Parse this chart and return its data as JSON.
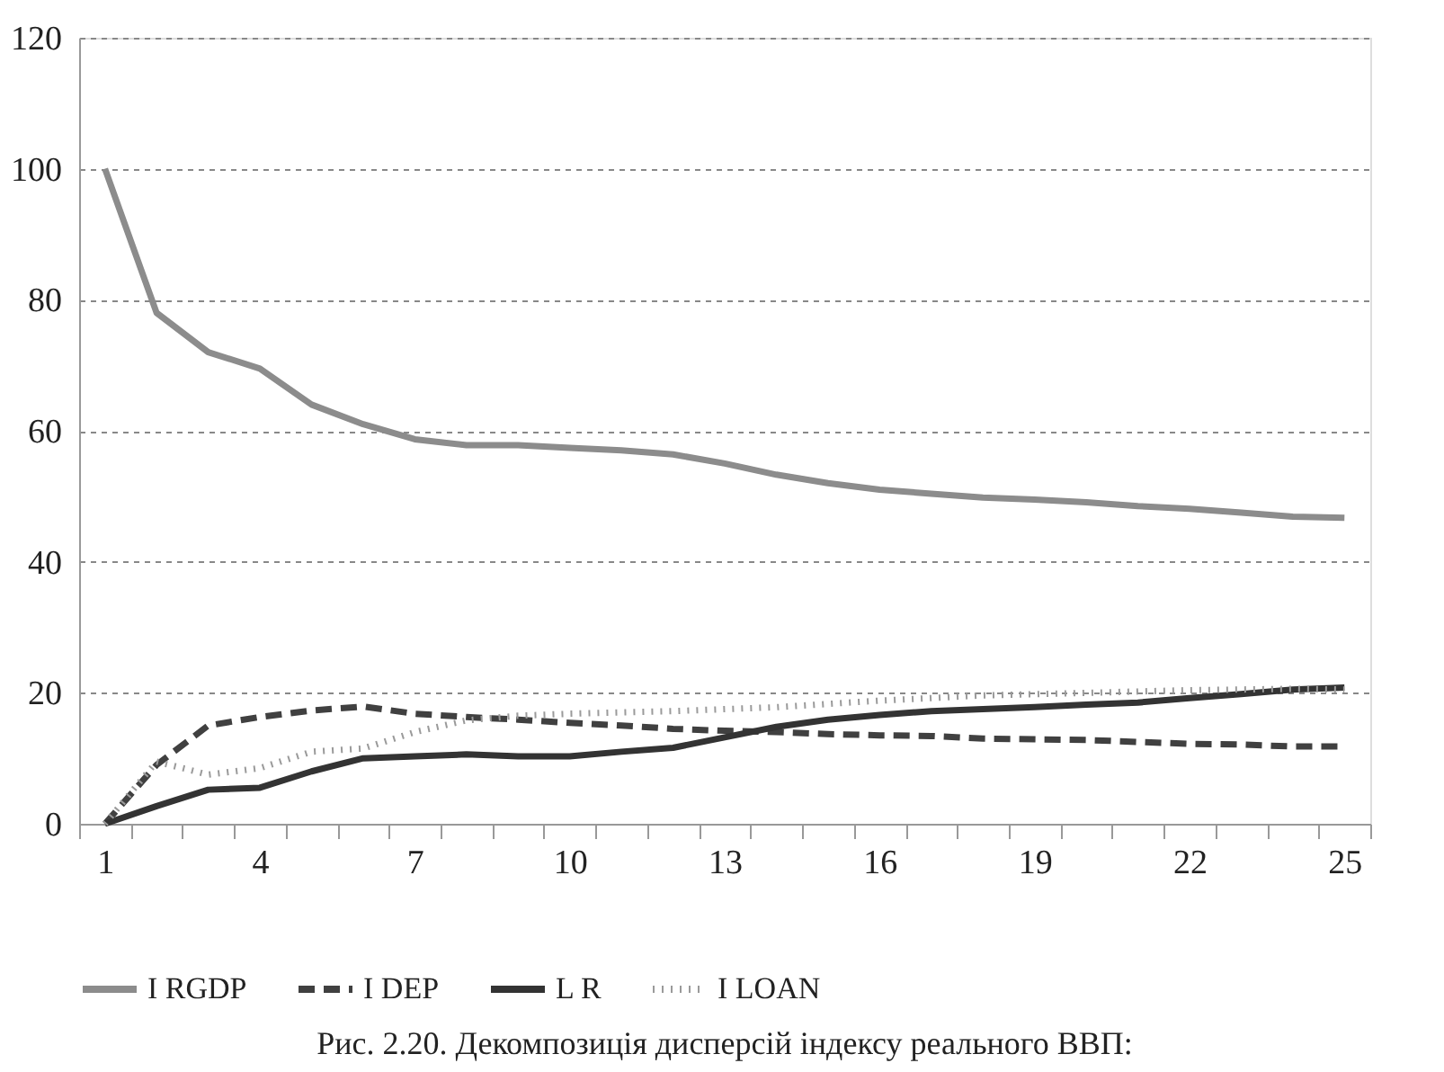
{
  "chart_data": {
    "type": "line",
    "title": "Рис. 2.20. Декомпозиція дисперсій індексу реального ВВП:",
    "categories": [
      "1",
      null,
      null,
      "4",
      null,
      null,
      "7",
      null,
      null,
      "10",
      null,
      null,
      "13",
      null,
      null,
      "16",
      null,
      null,
      "19",
      null,
      null,
      "22",
      null,
      null,
      "25"
    ],
    "ylim": [
      0,
      120
    ],
    "yticks": [
      0,
      20,
      40,
      60,
      80,
      100,
      120
    ],
    "grid": "y",
    "legend": "bottom",
    "marker": "none",
    "series": [
      {
        "name": "I RGDP",
        "color": "#8c8c8c",
        "line_style": "solid",
        "values": [
          100,
          78,
          72,
          69.5,
          64,
          61,
          58.7,
          57.8,
          57.8,
          57.4,
          57,
          56.4,
          55,
          53.3,
          52,
          51,
          50.4,
          49.8,
          49.5,
          49.1,
          48.5,
          48.1,
          47.5,
          46.9,
          46.7
        ]
      },
      {
        "name": "I DEP",
        "color": "#404040",
        "line_style": "dashed",
        "values": [
          0,
          9,
          15,
          16.3,
          17.3,
          17.9,
          16.8,
          16.3,
          15.9,
          15.4,
          15,
          14.5,
          14.2,
          14,
          13.7,
          13.5,
          13.4,
          13,
          12.9,
          12.8,
          12.5,
          12.2,
          12.1,
          11.8,
          11.8
        ]
      },
      {
        "name": "L R",
        "color": "#333333",
        "line_style": "solid",
        "values": [
          0,
          2.7,
          5.2,
          5.5,
          8,
          10,
          10.3,
          10.6,
          10.3,
          10.3,
          11,
          11.6,
          13.2,
          14.8,
          15.9,
          16.6,
          17.2,
          17.5,
          17.8,
          18.2,
          18.5,
          19.2,
          19.8,
          20.5,
          20.8
        ]
      },
      {
        "name": "I LOAN",
        "color": "#9a9a9a",
        "line_style": "dotted",
        "values": [
          0,
          9.5,
          7.5,
          8.5,
          11,
          11.5,
          14,
          15.8,
          16.5,
          16.8,
          17,
          17.2,
          17.5,
          17.8,
          18.3,
          18.8,
          19.2,
          19.6,
          19.8,
          20,
          20.2,
          20.4,
          20.5,
          20.6,
          20.5
        ]
      }
    ]
  }
}
